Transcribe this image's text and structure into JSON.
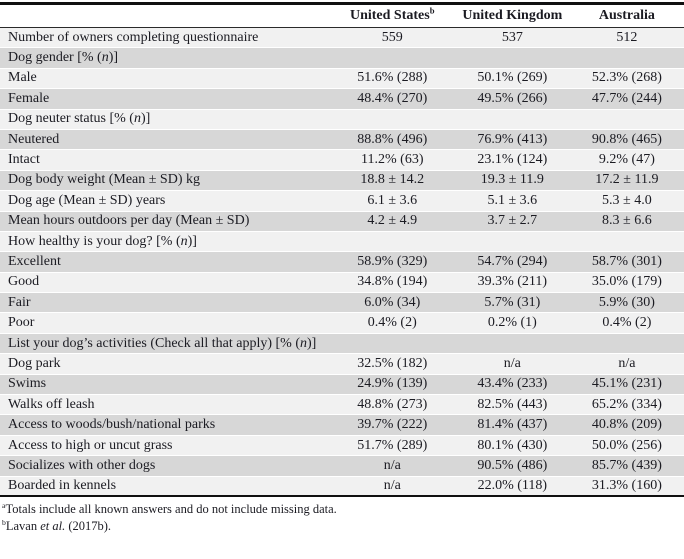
{
  "colors": {
    "row_shade_light": "#f1f1f1",
    "row_shade_dark": "#d7d7d7",
    "rule_color": "#101010",
    "text_color": "#1b1b22"
  },
  "table": {
    "col_headers": [
      "United States^b^",
      "United Kingdom",
      "Australia"
    ],
    "rows": [
      {
        "label": "Number of owners completing questionnaire",
        "values": [
          "559",
          "537",
          "512"
        ]
      },
      {
        "label": "Dog gender [% (*n*)]",
        "values": [
          "",
          "",
          ""
        ]
      },
      {
        "label": "Male",
        "values": [
          "51.6% (288)",
          "50.1% (269)",
          "52.3% (268)"
        ]
      },
      {
        "label": "Female",
        "values": [
          "48.4% (270)",
          "49.5% (266)",
          "47.7% (244)"
        ]
      },
      {
        "label": "Dog neuter status [% (*n*)]",
        "values": [
          "",
          "",
          ""
        ]
      },
      {
        "label": "Neutered",
        "values": [
          "88.8% (496)",
          "76.9% (413)",
          "90.8% (465)"
        ]
      },
      {
        "label": "Intact",
        "values": [
          "11.2% (63)",
          "23.1% (124)",
          "9.2% (47)"
        ]
      },
      {
        "label": "Dog body weight (Mean ± SD) kg",
        "values": [
          "18.8 ± 14.2",
          "19.3 ± 11.9",
          "17.2 ± 11.9"
        ]
      },
      {
        "label": "Dog age (Mean ± SD) years",
        "values": [
          "6.1 ± 3.6",
          "5.1 ± 3.6",
          "5.3 ± 4.0"
        ]
      },
      {
        "label": "Mean hours outdoors per day (Mean ± SD)",
        "values": [
          "4.2 ± 4.9",
          "3.7 ± 2.7",
          "8.3 ± 6.6"
        ]
      },
      {
        "label": "How healthy is your dog? [% (*n*)]",
        "values": [
          "",
          "",
          ""
        ]
      },
      {
        "label": "Excellent",
        "values": [
          "58.9% (329)",
          "54.7% (294)",
          "58.7% (301)"
        ]
      },
      {
        "label": "Good",
        "values": [
          "34.8% (194)",
          "39.3% (211)",
          "35.0% (179)"
        ]
      },
      {
        "label": "Fair",
        "values": [
          "6.0% (34)",
          "5.7% (31)",
          "5.9% (30)"
        ]
      },
      {
        "label": "Poor",
        "values": [
          "0.4% (2)",
          "0.2% (1)",
          "0.4% (2)"
        ]
      },
      {
        "label": "List your dog’s activities (Check all that apply) [% (*n*)]",
        "values": [
          "",
          "",
          ""
        ]
      },
      {
        "label": "Dog park",
        "values": [
          "32.5% (182)",
          "n/a",
          "n/a"
        ]
      },
      {
        "label": "Swims",
        "values": [
          "24.9% (139)",
          "43.4% (233)",
          "45.1% (231)"
        ]
      },
      {
        "label": "Walks off leash",
        "values": [
          "48.8% (273)",
          "82.5% (443)",
          "65.2% (334)"
        ]
      },
      {
        "label": "Access to woods/bush/national parks",
        "values": [
          "39.7% (222)",
          "81.4% (437)",
          "40.8% (209)"
        ]
      },
      {
        "label": "Access to high or uncut grass",
        "values": [
          "51.7% (289)",
          "80.1% (430)",
          "50.0% (256)"
        ]
      },
      {
        "label": "Socializes with other dogs",
        "values": [
          "n/a",
          "90.5% (486)",
          "85.7% (439)"
        ]
      },
      {
        "label": "Boarded in kennels",
        "values": [
          "n/a",
          "22.0% (118)",
          "31.3% (160)"
        ]
      }
    ],
    "footnotes": [
      "^a^Totals include all known answers and do not include missing data.",
      "^b^Lavan *et al.* (2017b)."
    ]
  }
}
